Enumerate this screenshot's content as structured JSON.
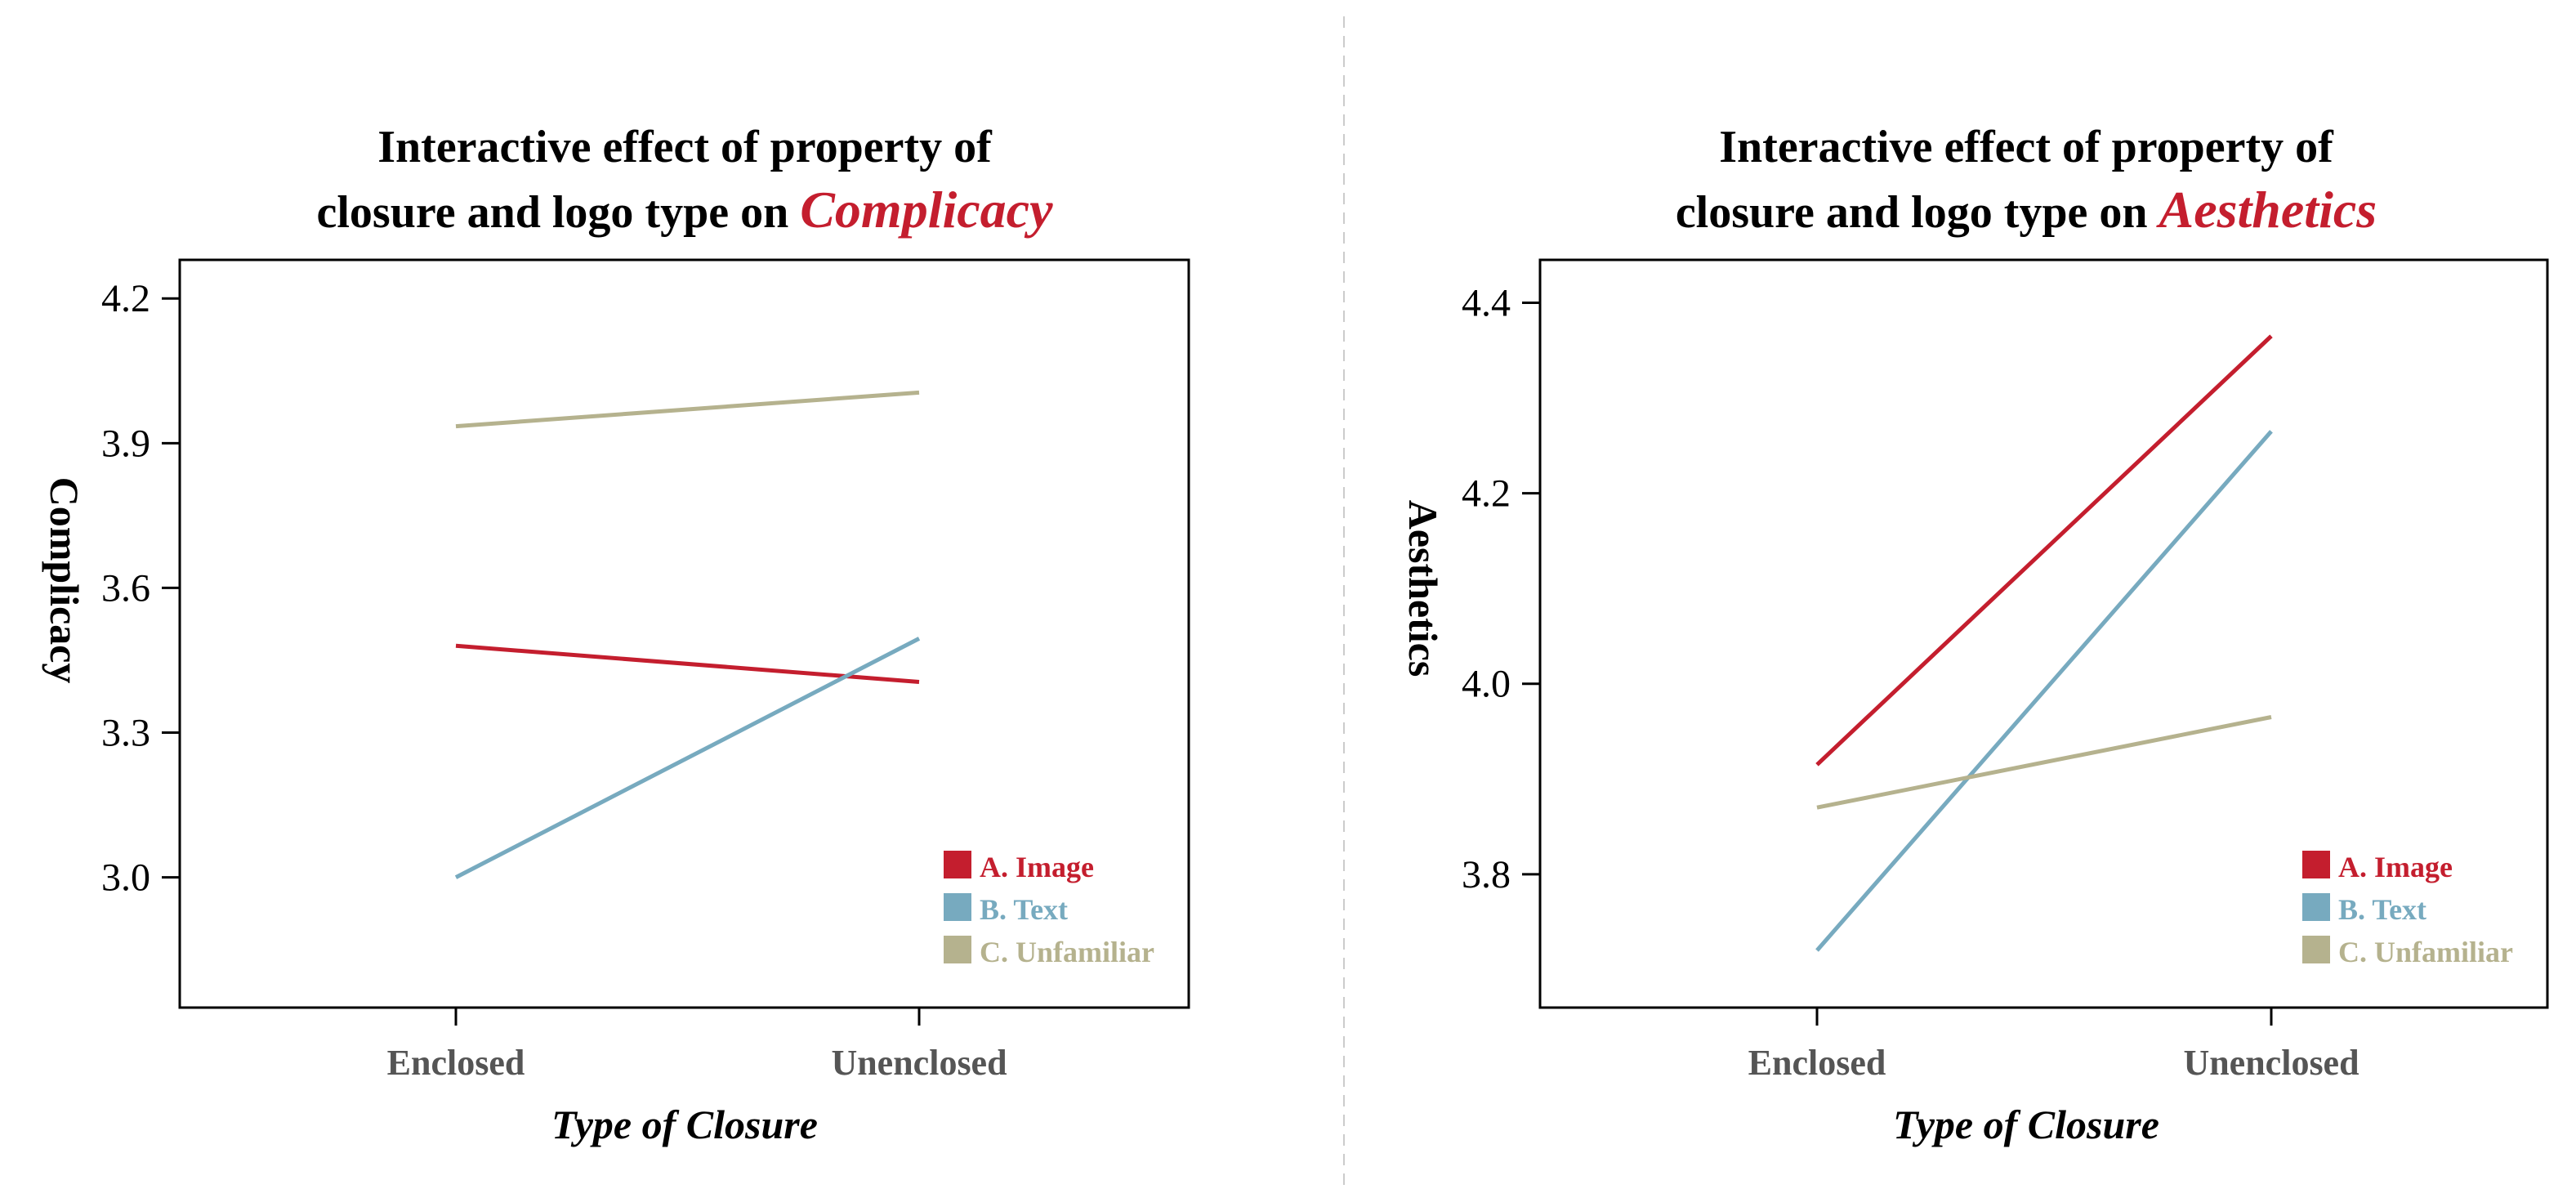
{
  "colors": {
    "A": "#c41e2e",
    "B": "#77aabf",
    "C": "#b5b28e",
    "accent": "#c41e2e",
    "axis": "#000000",
    "category": "#555555",
    "divider": "#cccccc"
  },
  "chart_data": [
    {
      "type": "line",
      "title_line1": "Interactive effect of property of",
      "title_line2_prefix": "closure and logo type on ",
      "title_accent": "Complicacy",
      "xlabel": "Type of Closure",
      "ylabel": "Complicacy",
      "categories": [
        "Enclosed",
        "Unenclosed"
      ],
      "ylim": [
        2.73,
        4.28
      ],
      "yticks": [
        3.0,
        3.3,
        3.6,
        3.9,
        4.2
      ],
      "ytick_labels": [
        "3.0",
        "3.3",
        "3.6",
        "3.9",
        "4.2"
      ],
      "grid": false,
      "legend_position": "bottom-right",
      "series": [
        {
          "key": "A",
          "name": "A. Image",
          "values": [
            3.48,
            3.405
          ]
        },
        {
          "key": "B",
          "name": "B. Text",
          "values": [
            3.0,
            3.495
          ]
        },
        {
          "key": "C",
          "name": "C. Unfamiliar",
          "values": [
            3.935,
            4.005
          ]
        }
      ]
    },
    {
      "type": "line",
      "title_line1": "Interactive effect of property of",
      "title_line2_prefix": "closure and logo type on ",
      "title_accent": "Aesthetics",
      "xlabel": "Type of Closure",
      "ylabel": "Aesthetics",
      "categories": [
        "Enclosed",
        "Unenclosed"
      ],
      "ylim": [
        3.66,
        4.445
      ],
      "yticks": [
        3.8,
        4.0,
        4.2,
        4.4
      ],
      "ytick_labels": [
        "3.8",
        "4.0",
        "4.2",
        "4.4"
      ],
      "grid": false,
      "legend_position": "bottom-right",
      "series": [
        {
          "key": "A",
          "name": "A. Image",
          "values": [
            3.915,
            4.365
          ]
        },
        {
          "key": "B",
          "name": "B. Text",
          "values": [
            3.72,
            4.265
          ]
        },
        {
          "key": "C",
          "name": "C. Unfamiliar",
          "values": [
            3.87,
            3.965
          ]
        }
      ]
    }
  ]
}
